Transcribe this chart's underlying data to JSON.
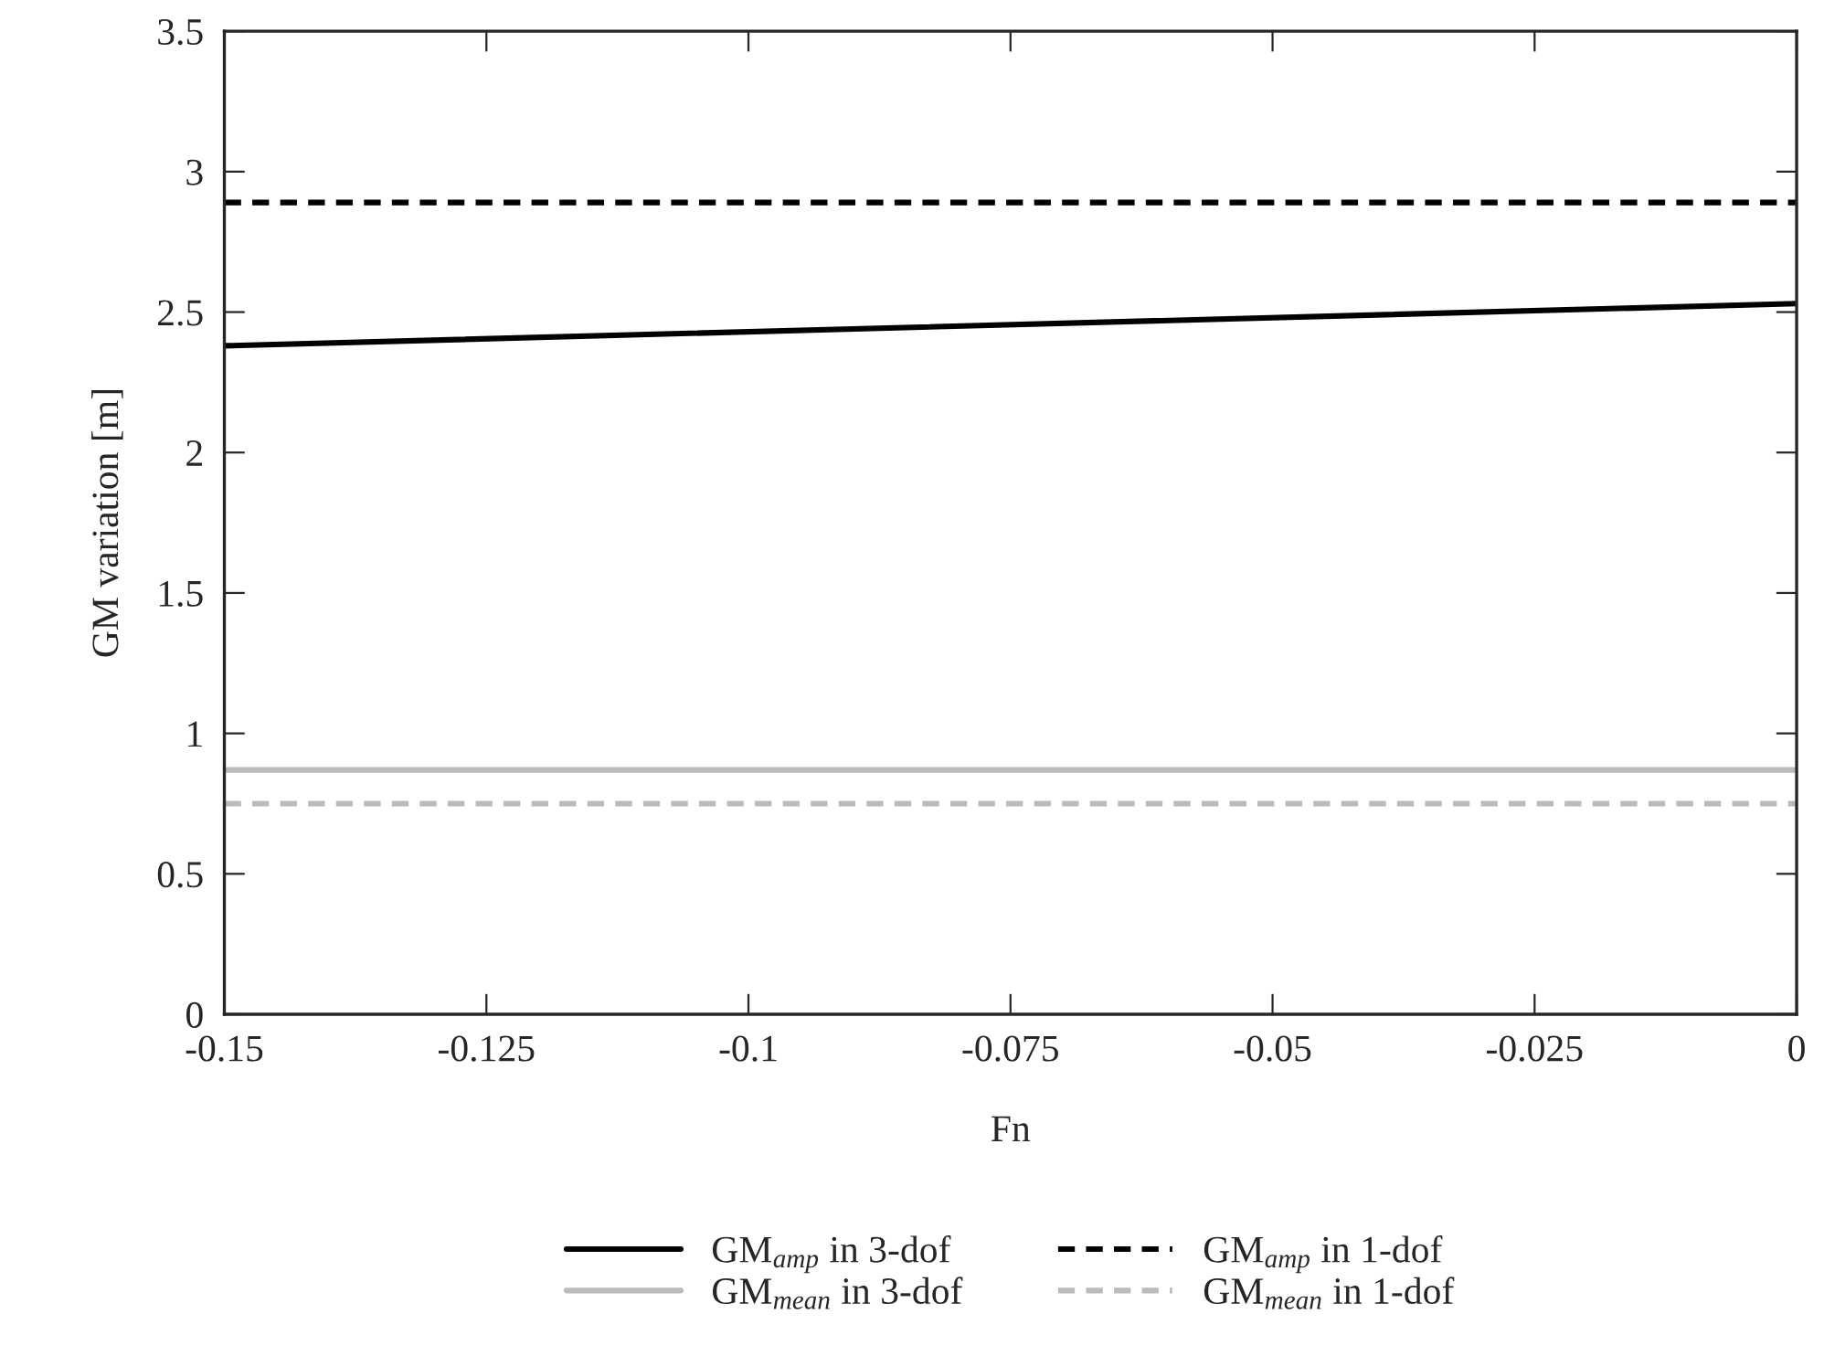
{
  "chart_data": {
    "type": "line",
    "xlabel": "Fn",
    "ylabel": "GM variation [m]",
    "x": [
      -0.15,
      0
    ],
    "series": [
      {
        "name": "GM$_{amp}$ in 3-dof",
        "color": "#000000",
        "values": [
          2.38,
          2.53
        ],
        "line_style": "solid"
      },
      {
        "name": "GM$_{amp}$ in 1-dof",
        "color": "#000000",
        "values": [
          2.89,
          2.89
        ],
        "line_style": "dashed"
      },
      {
        "name": "GM$_{mean}$ in 3-dof",
        "color": "#bbbbbb",
        "values": [
          0.87,
          0.87
        ],
        "line_style": "solid"
      },
      {
        "name": "GM$_{mean}$ in 1-dof",
        "color": "#bbbbbb",
        "values": [
          0.75,
          0.75
        ],
        "line_style": "dashed"
      }
    ],
    "xlim": [
      -0.15,
      0
    ],
    "xticks": [
      -0.15,
      -0.125,
      -0.1,
      -0.075,
      -0.05,
      -0.025,
      0
    ],
    "ylim": [
      0,
      3.5
    ],
    "yticks": [
      0,
      0.5,
      1,
      1.5,
      2,
      2.5,
      3,
      3.5
    ],
    "grid": false,
    "legend": "bottom",
    "marker": "none"
  }
}
